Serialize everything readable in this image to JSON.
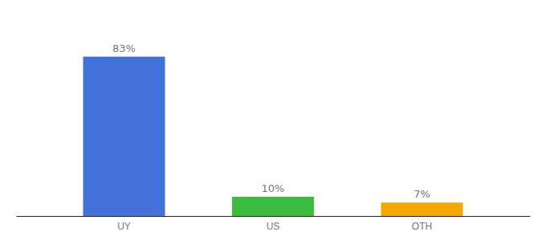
{
  "chart_data": {
    "type": "bar",
    "categories": [
      "UY",
      "US",
      "OTH"
    ],
    "values": [
      83,
      10,
      7
    ],
    "value_labels": [
      "83%",
      "10%",
      "7%"
    ],
    "colors": [
      "#4472db",
      "#3dbd3d",
      "#f5a800"
    ],
    "ylim": [
      0,
      100
    ],
    "data_labels": true,
    "tick_labels": "x",
    "grid": false
  }
}
